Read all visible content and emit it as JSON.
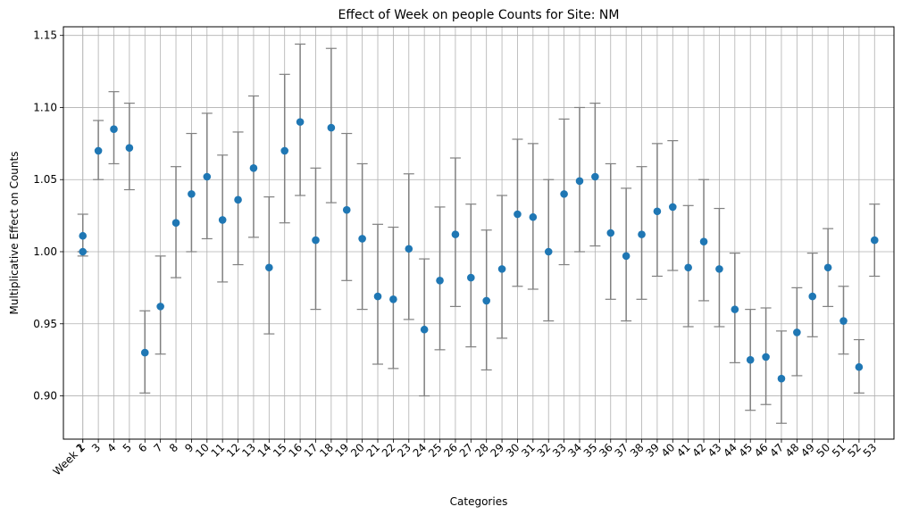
{
  "chart_data": {
    "type": "scatter",
    "title": "Effect of Week on people Counts for Site: NM",
    "xlabel": "Categories",
    "ylabel": "Multiplicative Effect on Counts",
    "ylim": [
      0.87,
      1.156
    ],
    "yticks": [
      0.9,
      0.95,
      1.0,
      1.05,
      1.1,
      1.15
    ],
    "ytick_labels": [
      "0.90",
      "0.95",
      "1.00",
      "1.05",
      "1.10",
      "1.15"
    ],
    "grid": true,
    "categories": [
      "Week 1",
      "2",
      "3",
      "4",
      "5",
      "6",
      "7",
      "8",
      "9",
      "10",
      "11",
      "12",
      "13",
      "14",
      "15",
      "16",
      "17",
      "18",
      "19",
      "20",
      "21",
      "22",
      "23",
      "24",
      "25",
      "26",
      "27",
      "28",
      "29",
      "30",
      "31",
      "32",
      "33",
      "34",
      "35",
      "36",
      "37",
      "38",
      "39",
      "40",
      "41",
      "42",
      "43",
      "44",
      "45",
      "46",
      "47",
      "48",
      "49",
      "50",
      "51",
      "52",
      "53"
    ],
    "x_positions": [
      0,
      0,
      1,
      2,
      3,
      4,
      5,
      6,
      7,
      8,
      9,
      10,
      11,
      12,
      13,
      14,
      15,
      16,
      17,
      18,
      19,
      20,
      21,
      22,
      23,
      24,
      25,
      26,
      27,
      28,
      29,
      30,
      31,
      32,
      33,
      34,
      35,
      36,
      37,
      38,
      39,
      40,
      41,
      42,
      43,
      44,
      45,
      46,
      47,
      48,
      49,
      50,
      51
    ],
    "series": [
      {
        "marker_color": "#1f77b4",
        "errorbar_color": "#808080",
        "values": [
          1.0,
          1.011,
          1.07,
          1.085,
          1.072,
          0.93,
          0.962,
          1.02,
          1.04,
          1.052,
          1.022,
          1.036,
          1.058,
          0.989,
          1.07,
          1.09,
          1.008,
          1.086,
          1.029,
          1.009,
          0.969,
          0.967,
          1.002,
          0.946,
          0.98,
          1.012,
          0.982,
          0.966,
          0.988,
          1.026,
          1.024,
          1.0,
          1.04,
          1.049,
          1.052,
          1.013,
          0.997,
          1.012,
          1.028,
          1.031,
          0.989,
          1.007,
          0.988,
          0.96,
          0.925,
          0.927,
          0.912,
          0.944,
          0.969,
          0.989,
          0.952,
          0.92,
          1.008
        ],
        "lower": [
          1.0,
          0.997,
          1.05,
          1.061,
          1.043,
          0.902,
          0.929,
          0.982,
          1.0,
          1.009,
          0.979,
          0.991,
          1.01,
          0.943,
          1.02,
          1.039,
          0.96,
          1.034,
          0.98,
          0.96,
          0.922,
          0.919,
          0.953,
          0.9,
          0.932,
          0.962,
          0.934,
          0.918,
          0.94,
          0.976,
          0.974,
          0.952,
          0.991,
          1.0,
          1.004,
          0.967,
          0.952,
          0.967,
          0.983,
          0.987,
          0.948,
          0.966,
          0.948,
          0.923,
          0.89,
          0.894,
          0.881,
          0.914,
          0.941,
          0.962,
          0.929,
          0.902,
          0.983
        ],
        "upper": [
          1.0,
          1.026,
          1.091,
          1.111,
          1.103,
          0.959,
          0.997,
          1.059,
          1.082,
          1.096,
          1.067,
          1.083,
          1.108,
          1.038,
          1.123,
          1.144,
          1.058,
          1.141,
          1.082,
          1.061,
          1.019,
          1.017,
          1.054,
          0.995,
          1.031,
          1.065,
          1.033,
          1.015,
          1.039,
          1.078,
          1.075,
          1.05,
          1.092,
          1.1,
          1.103,
          1.061,
          1.044,
          1.059,
          1.075,
          1.077,
          1.032,
          1.05,
          1.03,
          0.999,
          0.96,
          0.961,
          0.945,
          0.975,
          0.999,
          1.016,
          0.976,
          0.939,
          1.033
        ]
      }
    ]
  }
}
